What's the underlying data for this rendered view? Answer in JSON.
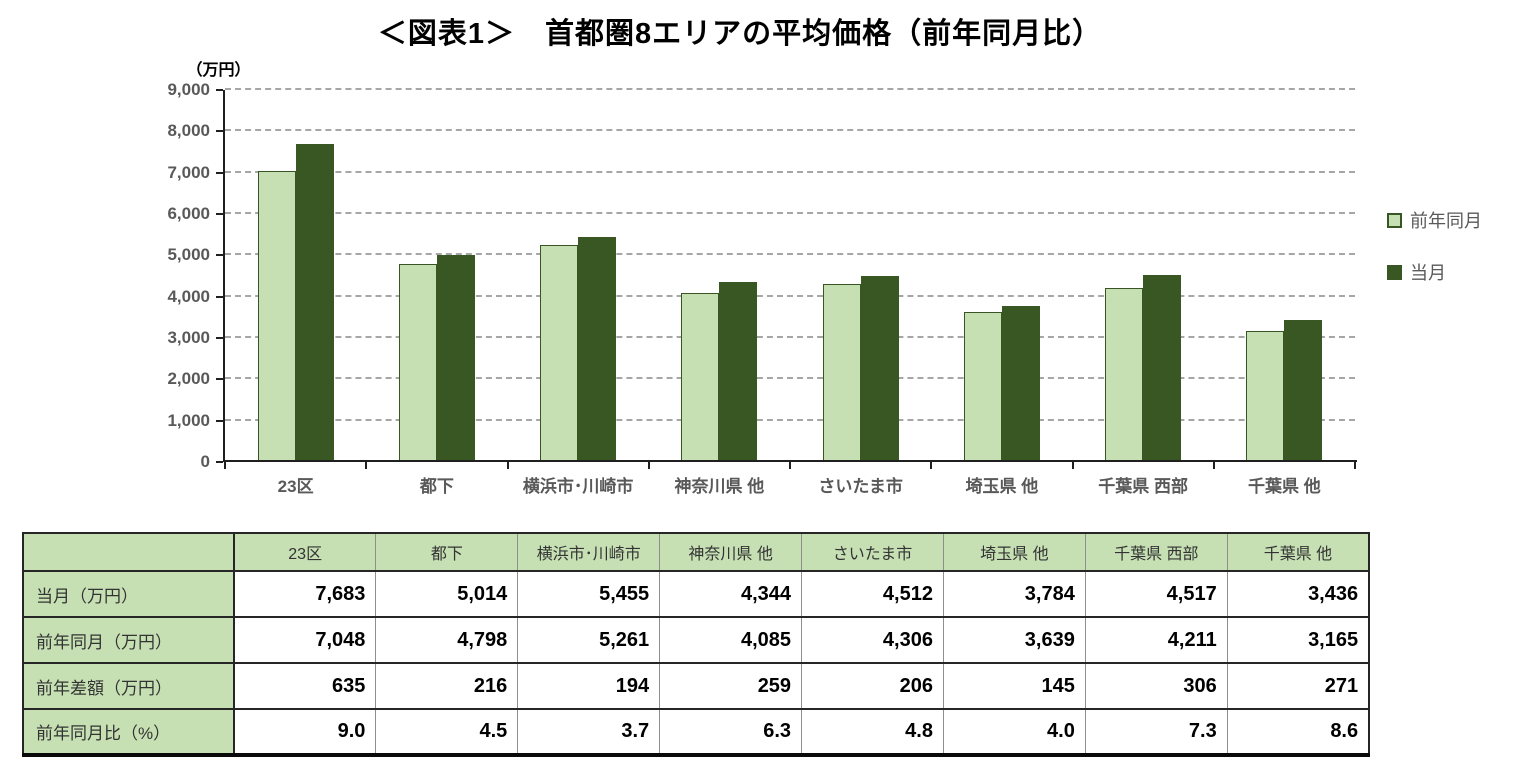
{
  "title": "＜図表1＞　首都圏8エリアの平均価格（前年同月比）",
  "chart_data": {
    "type": "bar",
    "title": "首都圏8エリアの平均価格（前年同月比）",
    "unit_label": "（万円）",
    "xlabel": "",
    "ylabel": "（万円）",
    "categories": [
      "23区",
      "都下",
      "横浜市･川崎市",
      "神奈川県 他",
      "さいたま市",
      "埼玉県 他",
      "千葉県 西部",
      "千葉県 他"
    ],
    "series": [
      {
        "name": "前年同月",
        "color": "#c6e0b4",
        "border_color": "#375623",
        "values": [
          7048,
          4798,
          5261,
          4085,
          4306,
          3639,
          4211,
          3165
        ]
      },
      {
        "name": "当月",
        "color": "#385723",
        "border_color": "#385723",
        "values": [
          7683,
          5014,
          5455,
          4344,
          4512,
          3784,
          4517,
          3436
        ]
      }
    ],
    "ylim": [
      0,
      9000
    ],
    "ytick_step": 1000,
    "ytick_labels": [
      "0",
      "1,000",
      "2,000",
      "3,000",
      "4,000",
      "5,000",
      "6,000",
      "7,000",
      "8,000",
      "9,000"
    ],
    "grid": "horizontal-dashed",
    "gridline_color": "#a6a6a6",
    "legend_position": "right"
  },
  "table": {
    "header": [
      "",
      "23区",
      "都下",
      "横浜市･川崎市",
      "神奈川県 他",
      "さいたま市",
      "埼玉県 他",
      "千葉県 西部",
      "千葉県 他"
    ],
    "rows": [
      {
        "label": "当月（万円）",
        "values": [
          "7,683",
          "5,014",
          "5,455",
          "4,344",
          "4,512",
          "3,784",
          "4,517",
          "3,436"
        ]
      },
      {
        "label": "前年同月（万円）",
        "values": [
          "7,048",
          "4,798",
          "5,261",
          "4,085",
          "4,306",
          "3,639",
          "4,211",
          "3,165"
        ]
      },
      {
        "label": "前年差額（万円）",
        "values": [
          "635",
          "216",
          "194",
          "259",
          "206",
          "145",
          "306",
          "271"
        ]
      },
      {
        "label": "前年同月比（%）",
        "values": [
          "9.0",
          "4.5",
          "3.7",
          "6.3",
          "4.8",
          "4.0",
          "7.3",
          "8.6"
        ]
      }
    ],
    "header_bg": "#c6e0b4",
    "label_bg": "#c6e0b4"
  }
}
